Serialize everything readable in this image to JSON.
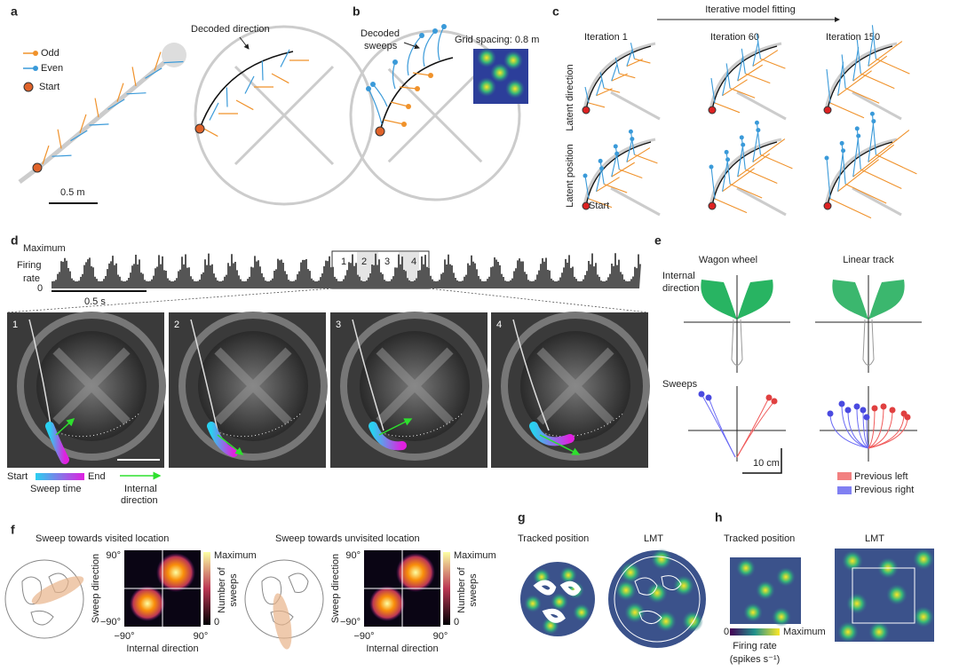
{
  "panels": [
    "a",
    "b",
    "c",
    "d",
    "e",
    "f",
    "g",
    "h"
  ],
  "a": {
    "legend": [
      "Odd",
      "Even",
      "Start"
    ],
    "scale": "0.5 m",
    "annotation": "Decoded direction"
  },
  "b": {
    "annotation": [
      "Decoded",
      "sweeps"
    ],
    "inset": "Grid spacing: 0.8 m"
  },
  "c": {
    "header": "Iterative model fitting",
    "columns": [
      "Iteration 1",
      "Iteration 60",
      "Iteration 150"
    ],
    "rows": [
      "Latent direction",
      "Latent position"
    ],
    "start": "Start"
  },
  "d": {
    "y_max": "Maximum",
    "y_label": [
      "Firing",
      "rate"
    ],
    "y_zero": "0",
    "scale": "0.5 s",
    "windows": [
      "1",
      "2",
      "3",
      "4"
    ],
    "frames": [
      "1",
      "2",
      "3",
      "4"
    ],
    "colorbar": [
      "Start",
      "End"
    ],
    "colorbar_label": "Sweep time",
    "arrow_label": [
      "Internal",
      "direction"
    ]
  },
  "e": {
    "columns": [
      "Wagon wheel",
      "Linear track"
    ],
    "y_label": [
      "Internal",
      "direction"
    ],
    "sweeps": "Sweeps",
    "scale": "10 cm",
    "legend": [
      "Previous left",
      "Previous right"
    ]
  },
  "f": {
    "titles": [
      "Sweep towards visited location",
      "Sweep towards unvisited location"
    ],
    "y_label": "Sweep direction",
    "x_label": "Internal direction",
    "yticks": [
      "90°",
      "−90°"
    ],
    "xticks": [
      "−90°",
      "90°"
    ],
    "colorbar": [
      "Maximum",
      "0"
    ],
    "colorbar_label": [
      "Number of",
      "sweeps"
    ]
  },
  "g": {
    "titles": [
      "Tracked position",
      "LMT"
    ]
  },
  "h": {
    "titles": [
      "Tracked position",
      "LMT"
    ],
    "colorbar": [
      "0",
      "Maximum"
    ],
    "colorbar_label": [
      "Firing rate",
      "(spikes s⁻¹)"
    ]
  }
}
